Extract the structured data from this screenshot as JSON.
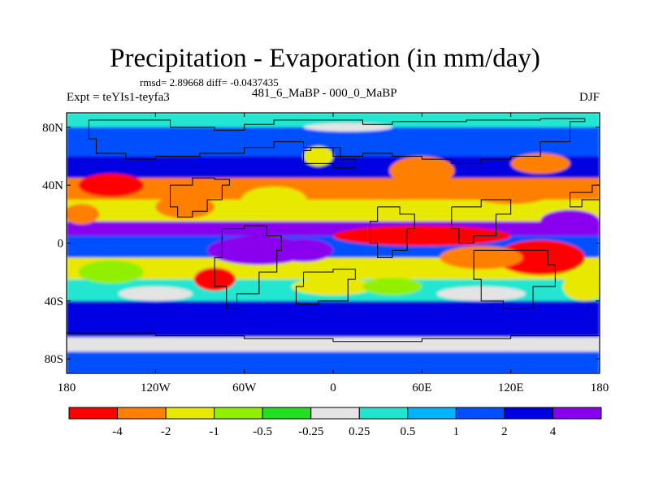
{
  "figure": {
    "title": "Precipitation - Evaporation (in mm/day)",
    "stats": "rmsd= 2.89668 diff= -0.0437435",
    "experiment": "Expt = teYIs1-teyfa3",
    "period": "481_6_MaBP - 000_0_MaBP",
    "season": "DJF"
  },
  "axes": {
    "x_ticks": [
      {
        "lon": -180,
        "label": "180"
      },
      {
        "lon": -120,
        "label": "120W"
      },
      {
        "lon": -60,
        "label": "60W"
      },
      {
        "lon": 0,
        "label": "0"
      },
      {
        "lon": 60,
        "label": "60E"
      },
      {
        "lon": 120,
        "label": "120E"
      },
      {
        "lon": 180,
        "label": "180"
      }
    ],
    "y_ticks": [
      {
        "lat": 80,
        "label": "80N"
      },
      {
        "lat": 40,
        "label": "40N"
      },
      {
        "lat": 0,
        "label": "0"
      },
      {
        "lat": -40,
        "label": "40S"
      },
      {
        "lat": -80,
        "label": "80S"
      }
    ],
    "lon_range": [
      -180,
      180
    ],
    "lat_range": [
      -90,
      90
    ]
  },
  "colorbar": {
    "colors": [
      "#ff0000",
      "#ff8000",
      "#e8e800",
      "#90f000",
      "#20e020",
      "#e4e4e4",
      "#20e6d0",
      "#00b4ff",
      "#0050ff",
      "#0000e0",
      "#8800ee"
    ],
    "labels": [
      "-4",
      "-2",
      "-1",
      "-0.5",
      "-0.25",
      "0.25",
      "0.5",
      "1",
      "2",
      "4"
    ]
  },
  "field": {
    "bands": [
      {
        "lat_min": 80,
        "lat_max": 90,
        "color": "#20e6d0"
      },
      {
        "lat_min": 60,
        "lat_max": 80,
        "color": "#0050ff"
      },
      {
        "lat_min": 45,
        "lat_max": 60,
        "color": "#0000e0"
      },
      {
        "lat_min": 30,
        "lat_max": 45,
        "color": "#ff8000"
      },
      {
        "lat_min": 15,
        "lat_max": 30,
        "color": "#e8e800"
      },
      {
        "lat_min": 5,
        "lat_max": 15,
        "color": "#8800ee"
      },
      {
        "lat_min": -10,
        "lat_max": 5,
        "color": "#0050ff"
      },
      {
        "lat_min": -25,
        "lat_max": -10,
        "color": "#e8e800"
      },
      {
        "lat_min": -40,
        "lat_max": -25,
        "color": "#20e6d0"
      },
      {
        "lat_min": -65,
        "lat_max": -40,
        "color": "#0000e0"
      },
      {
        "lat_min": -75,
        "lat_max": -65,
        "color": "#e4e4e4"
      },
      {
        "lat_min": -90,
        "lat_max": -75,
        "color": "#0050ff"
      }
    ],
    "blobs": [
      {
        "lon": -150,
        "lat": 40,
        "rlon": 22,
        "rlat": 8,
        "color": "#ff0000"
      },
      {
        "lon": -100,
        "lat": 25,
        "rlon": 20,
        "rlat": 8,
        "color": "#ff8000"
      },
      {
        "lon": -40,
        "lat": 30,
        "rlon": 22,
        "rlat": 9,
        "color": "#e8e800"
      },
      {
        "lon": 120,
        "lat": 35,
        "rlon": 28,
        "rlat": 8,
        "color": "#ff8000"
      },
      {
        "lon": 60,
        "lat": 50,
        "rlon": 22,
        "rlat": 10,
        "color": "#ff8000"
      },
      {
        "lon": 140,
        "lat": 55,
        "rlon": 20,
        "rlat": 7,
        "color": "#ff8000"
      },
      {
        "lon": 60,
        "lat": 5,
        "rlon": 60,
        "rlat": 7,
        "color": "#ff0000"
      },
      {
        "lon": 140,
        "lat": -10,
        "rlon": 30,
        "rlat": 12,
        "color": "#ff0000"
      },
      {
        "lon": 100,
        "lat": -10,
        "rlon": 28,
        "rlat": 8,
        "color": "#ff8000"
      },
      {
        "lon": -50,
        "lat": -5,
        "rlon": 35,
        "rlat": 10,
        "color": "#8800ee"
      },
      {
        "lon": -20,
        "lat": -5,
        "rlon": 20,
        "rlat": 8,
        "color": "#8800ee"
      },
      {
        "lon": 0,
        "lat": -30,
        "rlon": 28,
        "rlat": 6,
        "color": "#e8e800"
      },
      {
        "lon": -150,
        "lat": -20,
        "rlon": 22,
        "rlat": 8,
        "color": "#90f000"
      },
      {
        "lon": 160,
        "lat": 15,
        "rlon": 20,
        "rlat": 8,
        "color": "#8800ee"
      },
      {
        "lon": 170,
        "lat": -30,
        "rlon": 15,
        "rlat": 10,
        "color": "#e8e800"
      },
      {
        "lon": -80,
        "lat": -25,
        "rlon": 14,
        "rlat": 8,
        "color": "#ff0000"
      },
      {
        "lon": -10,
        "lat": 60,
        "rlon": 10,
        "rlat": 7,
        "color": "#e8e800"
      },
      {
        "lon": 10,
        "lat": 80,
        "rlon": 30,
        "rlat": 3,
        "color": "#e4e4e4"
      },
      {
        "lon": -170,
        "lat": 20,
        "rlon": 12,
        "rlat": 7,
        "color": "#ff8000"
      },
      {
        "lon": 40,
        "lat": -30,
        "rlon": 20,
        "rlat": 6,
        "color": "#90f000"
      },
      {
        "lon": -120,
        "lat": -35,
        "rlon": 25,
        "rlat": 5,
        "color": "#e4e4e4"
      },
      {
        "lon": 100,
        "lat": -35,
        "rlon": 30,
        "rlat": 5,
        "color": "#e4e4e4"
      }
    ]
  }
}
